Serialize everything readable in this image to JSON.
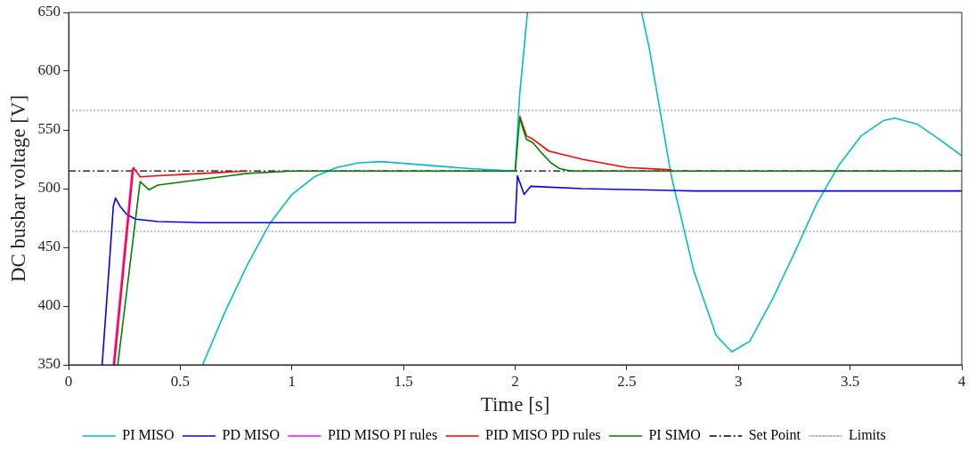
{
  "chart_data": {
    "type": "line",
    "xlabel": "Time [s]",
    "ylabel": "DC busbar voltage [V]",
    "xlim": [
      0,
      4
    ],
    "ylim": [
      350,
      650
    ],
    "xticks": [
      0,
      0.5,
      1,
      1.5,
      2,
      2.5,
      3,
      3.5,
      4
    ],
    "yticks": [
      350,
      400,
      450,
      500,
      550,
      600,
      650
    ],
    "grid": false,
    "legend": "bottom",
    "marker": "none",
    "line_style": "solid",
    "series": [
      {
        "name": "PI MISO",
        "color": "#00bfbf",
        "x": [
          0.6,
          0.7,
          0.8,
          0.9,
          1.0,
          1.1,
          1.2,
          1.3,
          1.4,
          1.6,
          1.8,
          2.0,
          2.02,
          2.055,
          2.3,
          2.566,
          2.6,
          2.7,
          2.8,
          2.9,
          2.97,
          3.05,
          3.15,
          3.25,
          3.35,
          3.45,
          3.55,
          3.65,
          3.7,
          3.8,
          3.9,
          4.0
        ],
        "values": [
          350,
          395,
          435,
          470,
          495,
          510,
          518,
          522,
          523,
          520,
          517,
          515,
          580,
          650,
          null,
          650,
          620,
          510,
          430,
          375,
          361,
          370,
          405,
          445,
          487,
          520,
          545,
          558,
          560,
          555,
          542,
          528
        ]
      },
      {
        "name": "PD MISO",
        "color": "#0000ff",
        "x": [
          0.15,
          0.18,
          0.2,
          0.21,
          0.23,
          0.26,
          0.3,
          0.4,
          0.6,
          2.0,
          2.01,
          2.04,
          2.07,
          2.3,
          2.8,
          4.0
        ],
        "values": [
          350,
          430,
          485,
          492,
          485,
          478,
          474,
          472,
          471,
          471,
          511,
          495,
          502,
          500,
          498,
          498
        ]
      },
      {
        "name": "PID MISO PI rules",
        "color": "#ff00ff",
        "x": [
          0.2,
          0.285
        ],
        "values": [
          350,
          517
        ]
      },
      {
        "name": "PID MISO PD rules",
        "color": "#ff0000",
        "x": [
          0.205,
          0.29,
          0.32,
          0.4,
          0.6,
          0.8,
          1.4,
          2.02,
          2.05,
          2.08,
          2.15,
          2.3,
          2.5,
          2.7
        ],
        "values": [
          350,
          518,
          510,
          511,
          513,
          515,
          null,
          562,
          545,
          542,
          532,
          525,
          518,
          516
        ]
      },
      {
        "name": "PI SIMO",
        "color": "#008000",
        "x": [
          0.22,
          0.32,
          0.36,
          0.4,
          0.6,
          0.8,
          1.0,
          2.0,
          2.02,
          2.05,
          2.08,
          2.12,
          2.16,
          2.2,
          2.25,
          4.0
        ],
        "values": [
          350,
          506,
          499,
          503,
          508,
          513,
          515,
          515,
          560,
          542,
          539,
          530,
          522,
          517,
          515,
          515
        ]
      }
    ],
    "ref_lines": [
      {
        "axis": "y",
        "value": 515,
        "label": "Set Point",
        "color": "#000000",
        "line_style": "dashdot"
      },
      {
        "axis": "y",
        "value": 566.5,
        "label": "Limits",
        "color": "#808080",
        "line_style": "dotted"
      },
      {
        "axis": "y",
        "value": 463.5,
        "color": "#808080",
        "line_style": "dotted"
      }
    ]
  }
}
